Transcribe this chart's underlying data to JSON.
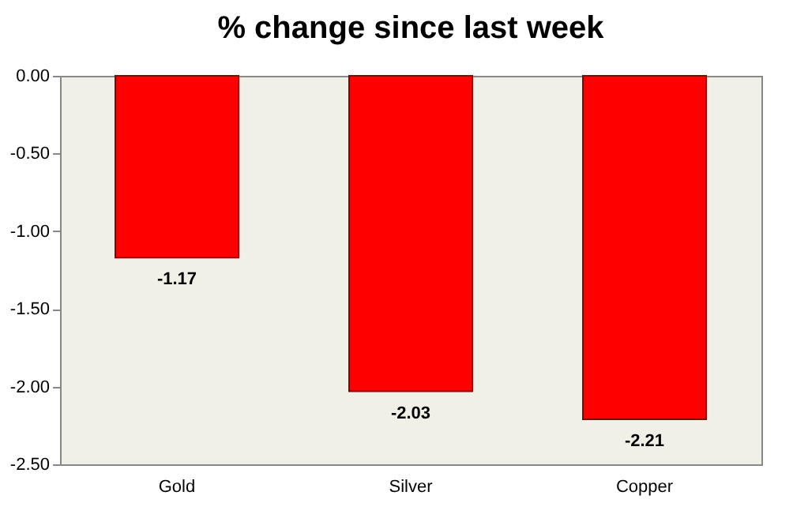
{
  "chart_data": {
    "type": "bar",
    "title": "% change since last week",
    "categories": [
      "Gold",
      "Silver",
      "Copper"
    ],
    "values": [
      -1.17,
      -2.03,
      -2.21
    ],
    "color": "#ff0000",
    "ylim": [
      -2.5,
      0
    ],
    "yticks": [
      {
        "value": 0,
        "label": "0.00"
      },
      {
        "value": -0.5,
        "label": "-0.50"
      },
      {
        "value": -1,
        "label": "-1.00"
      },
      {
        "value": -1.5,
        "label": "-1.50"
      },
      {
        "value": -2,
        "label": "-2.00"
      },
      {
        "value": -2.5,
        "label": "-2.50"
      }
    ],
    "data_labels": true,
    "grid": false
  }
}
